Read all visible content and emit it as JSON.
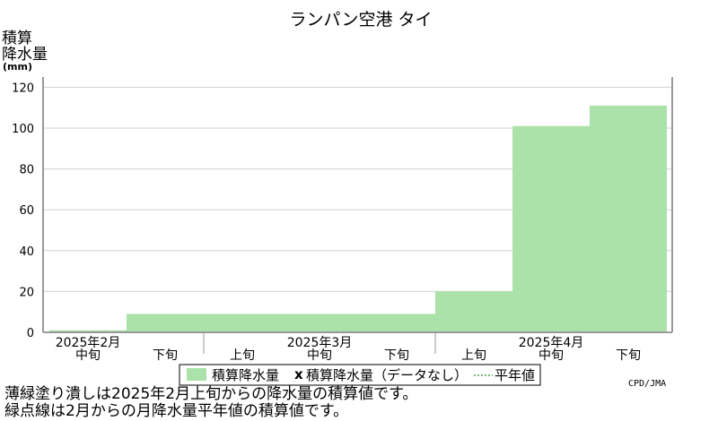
{
  "chart_data": {
    "type": "area",
    "title": "ランパン空港 タイ",
    "ylabel_lines": [
      "積算",
      "降水量"
    ],
    "yunit": "(mm)",
    "ylim": [
      0,
      125
    ],
    "yticks": [
      0,
      20,
      40,
      60,
      80,
      100,
      120
    ],
    "grid": true,
    "periods": [
      {
        "month": "2025年2月",
        "dekad": "中旬",
        "value": 1
      },
      {
        "month": "2025年2月",
        "dekad": "下旬",
        "value": 9
      },
      {
        "month": "2025年3月",
        "dekad": "上旬",
        "value": 9
      },
      {
        "month": "2025年3月",
        "dekad": "中旬",
        "value": 9
      },
      {
        "month": "2025年3月",
        "dekad": "下旬",
        "value": 9
      },
      {
        "month": "2025年4月",
        "dekad": "上旬",
        "value": 20
      },
      {
        "month": "2025年4月",
        "dekad": "中旬",
        "value": 101
      },
      {
        "month": "2025年4月",
        "dekad": "下旬",
        "value": 111
      }
    ],
    "month_labels": [
      "2025年2月",
      "2025年3月",
      "2025年4月"
    ],
    "series": [
      {
        "name": "積算降水量",
        "color": "#aae2aa"
      }
    ],
    "legend": {
      "placement": "bottom",
      "items": [
        "積算降水量",
        "積算降水量（データなし）",
        "平年値"
      ],
      "missing_marker": "x"
    },
    "credit": "CPD/JMA"
  },
  "captions": [
    "薄緑塗り潰しは2025年2月上旬からの降水量の積算値です。",
    "緑点線は2月からの月降水量平年値の積算値です。"
  ]
}
